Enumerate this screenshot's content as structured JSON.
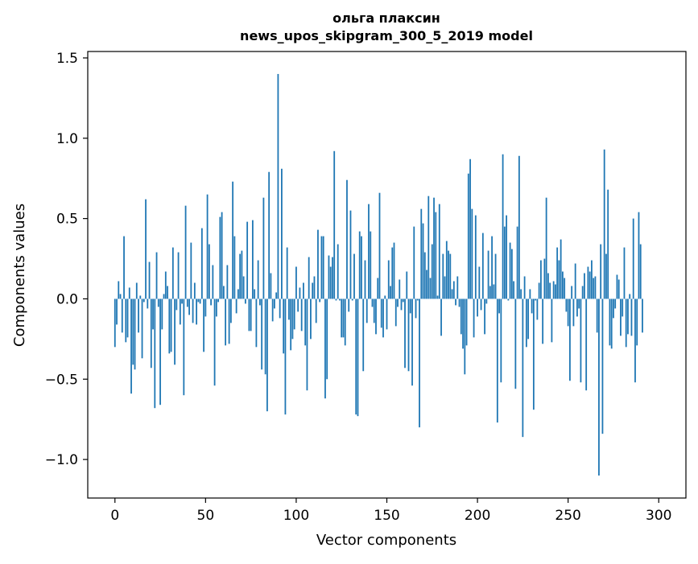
{
  "chart_data": {
    "type": "bar",
    "title_lines": [
      "ольга плаксин",
      "news_upos_skipgram_300_5_2019 model"
    ],
    "xlabel": "Vector components",
    "ylabel": "Components values",
    "xlim": [
      -15,
      315
    ],
    "ylim": [
      -1.24,
      1.54
    ],
    "xticks": [
      0,
      50,
      100,
      150,
      200,
      250,
      300
    ],
    "xtick_labels": [
      "0",
      "50",
      "100",
      "150",
      "200",
      "250",
      "300"
    ],
    "yticks": [
      -1.0,
      -0.5,
      0.0,
      0.5,
      1.0,
      1.5
    ],
    "ytick_labels": [
      "−1.0",
      "−0.5",
      "0.0",
      "0.5",
      "1.0",
      "1.5"
    ],
    "grid": false,
    "bar_color": "#1f77b4",
    "bar_width": 0.8,
    "values": [
      -0.3,
      -0.16,
      0.11,
      0.03,
      -0.21,
      0.39,
      -0.27,
      -0.24,
      0.07,
      -0.59,
      -0.41,
      -0.44,
      0.1,
      -0.21,
      0.02,
      -0.37,
      -0.02,
      0.62,
      -0.06,
      0.23,
      -0.43,
      -0.19,
      -0.68,
      0.29,
      -0.05,
      -0.66,
      -0.19,
      0.03,
      0.17,
      0.08,
      -0.34,
      -0.33,
      0.32,
      -0.41,
      -0.07,
      0.29,
      -0.16,
      -0.03,
      -0.6,
      0.58,
      -0.05,
      -0.1,
      0.35,
      -0.15,
      0.1,
      -0.16,
      -0.02,
      -0.03,
      0.44,
      -0.33,
      -0.11,
      0.65,
      0.34,
      -0.04,
      0.21,
      -0.54,
      -0.11,
      -0.02,
      0.51,
      0.54,
      0.08,
      -0.29,
      0.21,
      -0.28,
      -0.15,
      0.73,
      0.39,
      -0.09,
      0.06,
      0.28,
      0.3,
      0.14,
      -0.03,
      0.48,
      -0.2,
      -0.2,
      0.49,
      0.06,
      -0.3,
      0.24,
      -0.04,
      -0.44,
      0.63,
      -0.47,
      -0.7,
      0.79,
      0.16,
      -0.14,
      -0.06,
      0.04,
      1.4,
      -0.12,
      0.81,
      -0.34,
      -0.72,
      0.32,
      -0.13,
      -0.32,
      -0.25,
      -0.19,
      0.2,
      -0.08,
      0.07,
      -0.2,
      0.1,
      -0.29,
      -0.57,
      0.26,
      -0.25,
      0.1,
      0.14,
      -0.15,
      0.43,
      -0.02,
      0.39,
      0.39,
      -0.62,
      -0.5,
      0.27,
      0.2,
      0.26,
      0.92,
      -0.01,
      0.34,
      -0.01,
      -0.24,
      -0.24,
      -0.29,
      0.74,
      -0.08,
      0.55,
      -0.01,
      0.28,
      -0.72,
      -0.73,
      0.42,
      0.39,
      -0.45,
      0.24,
      -0.15,
      0.59,
      0.42,
      -0.05,
      -0.15,
      -0.22,
      0.13,
      0.66,
      -0.18,
      -0.24,
      0.02,
      -0.19,
      0.24,
      0.08,
      0.32,
      0.35,
      -0.17,
      -0.05,
      0.12,
      -0.07,
      -0.02,
      -0.43,
      0.17,
      -0.45,
      -0.09,
      -0.54,
      0.45,
      -0.12,
      -0.01,
      -0.8,
      0.56,
      0.47,
      0.29,
      0.18,
      0.64,
      0.13,
      0.34,
      0.63,
      0.54,
      0.02,
      0.59,
      -0.23,
      0.28,
      0.14,
      0.36,
      0.3,
      0.28,
      0.06,
      0.11,
      -0.04,
      0.14,
      -0.05,
      -0.22,
      -0.31,
      -0.47,
      -0.29,
      0.78,
      0.87,
      0.56,
      -0.24,
      0.52,
      -0.11,
      0.2,
      -0.07,
      0.41,
      -0.22,
      -0.03,
      0.3,
      0.08,
      0.39,
      0.09,
      0.28,
      -0.77,
      -0.09,
      -0.52,
      0.9,
      0.45,
      0.52,
      -0.01,
      0.35,
      0.31,
      0.11,
      -0.56,
      0.45,
      0.89,
      0.06,
      -0.86,
      0.14,
      -0.3,
      -0.25,
      0.06,
      -0.09,
      -0.69,
      -0.01,
      -0.13,
      0.1,
      0.24,
      -0.28,
      0.25,
      0.63,
      0.16,
      0.1,
      -0.27,
      0.11,
      0.09,
      0.32,
      0.24,
      0.37,
      0.17,
      0.13,
      -0.08,
      -0.17,
      -0.51,
      0.08,
      -0.17,
      0.22,
      -0.11,
      -0.06,
      -0.52,
      0.08,
      0.16,
      -0.57,
      0.2,
      0.17,
      0.24,
      0.13,
      0.14,
      -0.21,
      -1.1,
      0.34,
      -0.84,
      0.93,
      0.28,
      0.68,
      -0.29,
      -0.31,
      -0.12,
      -0.06,
      0.15,
      0.12,
      -0.23,
      -0.11,
      0.32,
      -0.3,
      -0.22,
      0.03,
      -0.23,
      0.5,
      -0.52,
      -0.29,
      0.54,
      0.34,
      -0.21
    ]
  }
}
